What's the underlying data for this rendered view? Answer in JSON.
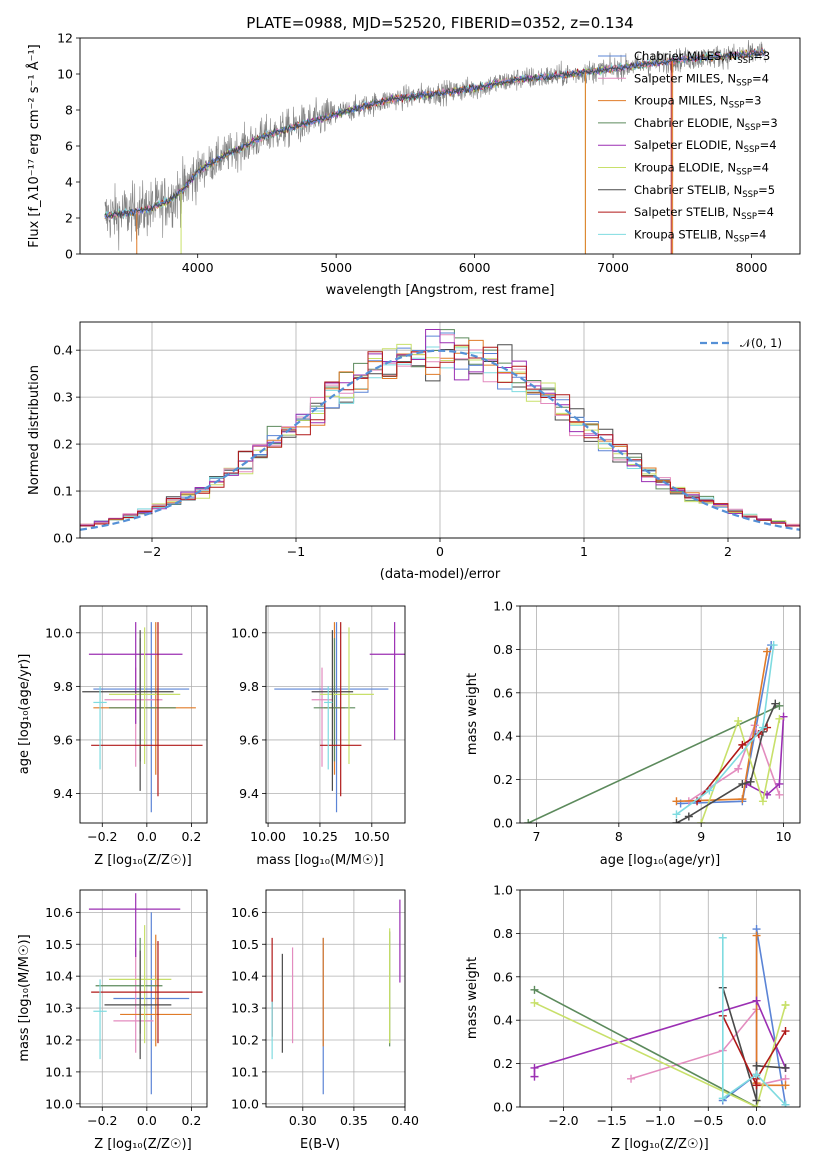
{
  "series_styles": [
    {
      "name": "Chabrier MILES",
      "color": "#5b84d6"
    },
    {
      "name": "Salpeter MILES",
      "color": "#e38cbf"
    },
    {
      "name": "Kroupa MILES",
      "color": "#e07b28"
    },
    {
      "name": "Chabrier ELODIE",
      "color": "#5c8a5c"
    },
    {
      "name": "Salpeter ELODIE",
      "color": "#9b2fb3"
    },
    {
      "name": "Kroupa ELODIE",
      "color": "#c8e06a"
    },
    {
      "name": "Chabrier STELIB",
      "color": "#4a4a4a"
    },
    {
      "name": "Salpeter STELIB",
      "color": "#b01818"
    },
    {
      "name": "Kroupa STELIB",
      "color": "#7fdbe0"
    }
  ],
  "chart_data": [
    {
      "id": "spectrum",
      "type": "line",
      "title": "PLATE=0988, MJD=52520, FIBERID=0352, z=0.134",
      "xlabel": "wavelength [Angstrom, rest frame]",
      "ylabel": "Flux [f_λ10⁻¹⁷ erg cm⁻² s⁻¹ Å⁻¹]",
      "xlim": [
        3150,
        8350
      ],
      "ylim": [
        0,
        12
      ],
      "xticks": [
        4000,
        5000,
        6000,
        7000,
        8000
      ],
      "yticks": [
        0,
        2,
        4,
        6,
        8,
        10,
        12
      ],
      "legend_position": "upper-right",
      "legend": [
        {
          "label": "Chabrier MILES, ",
          "n": "3"
        },
        {
          "label": "Salpeter MILES, ",
          "n": "4"
        },
        {
          "label": "Kroupa MILES, ",
          "n": "3"
        },
        {
          "label": "Chabrier ELODIE, ",
          "n": "3"
        },
        {
          "label": "Salpeter ELODIE, ",
          "n": "4"
        },
        {
          "label": "Kroupa ELODIE, ",
          "n": "4"
        },
        {
          "label": "Chabrier STELIB, ",
          "n": "5"
        },
        {
          "label": "Salpeter STELIB, ",
          "n": "4"
        },
        {
          "label": "Kroupa STELIB, ",
          "n": "4"
        }
      ],
      "nssp_symbol": "N",
      "nssp_sub": "SSP",
      "continuum": {
        "x": [
          3330,
          3500,
          3650,
          3800,
          3900,
          4000,
          4200,
          4500,
          4800,
          5100,
          5400,
          5700,
          6000,
          6300,
          6600,
          6900,
          7200,
          7500,
          7800,
          8100
        ],
        "y": [
          2.1,
          2.3,
          2.5,
          3.0,
          3.6,
          4.6,
          5.5,
          6.6,
          7.3,
          8.0,
          8.6,
          8.9,
          9.2,
          9.7,
          9.9,
          10.2,
          10.5,
          10.8,
          11.0,
          11.2
        ]
      },
      "spikes": [
        {
          "x": 6800,
          "y": 0,
          "color": "#c8e06a"
        },
        {
          "x": 6800,
          "y": 0,
          "color": "#e07b28"
        },
        {
          "x": 7420,
          "y": 0,
          "color": "#b01818"
        },
        {
          "x": 7430,
          "y": 0,
          "color": "#e07b28"
        },
        {
          "x": 3560,
          "y": 0,
          "color": "#e07b28"
        },
        {
          "x": 3880,
          "y": 0,
          "color": "#c8e06a"
        }
      ]
    },
    {
      "id": "residuals",
      "type": "histogram",
      "xlabel": "(data-model)/error",
      "ylabel": "Normed distribution",
      "xlim": [
        -2.5,
        2.5
      ],
      "ylim": [
        0,
        0.46
      ],
      "xticks": [
        -2,
        -1,
        0,
        1,
        2
      ],
      "yticks": [
        0.0,
        0.1,
        0.2,
        0.3,
        0.4
      ],
      "legend": "𝒩(0, 1)",
      "legend_color": "#5590d6",
      "bin_width": 0.1,
      "base_values": [
        0.03,
        0.04,
        0.04,
        0.045,
        0.05,
        0.05,
        0.06,
        0.075,
        0.09,
        0.1,
        0.11,
        0.12,
        0.14,
        0.15,
        0.17,
        0.18,
        0.21,
        0.24,
        0.27,
        0.28,
        0.29,
        0.3,
        0.31,
        0.32,
        0.34,
        0.35,
        0.37,
        0.38,
        0.39,
        0.4,
        0.4,
        0.4,
        0.4,
        0.39,
        0.38,
        0.37,
        0.36,
        0.35,
        0.34,
        0.32,
        0.31,
        0.29,
        0.28,
        0.26,
        0.24,
        0.22,
        0.21,
        0.19,
        0.17,
        0.15,
        0.14,
        0.12,
        0.11,
        0.09,
        0.08,
        0.07,
        0.06,
        0.05,
        0.045,
        0.04,
        0.035,
        0.03,
        0.03,
        0.028,
        0.025,
        0.025,
        0.022,
        0.02,
        0.02,
        0.018,
        0.017,
        0.016,
        0.015,
        0.014,
        0.013,
        0.012,
        0.011,
        0.01,
        0.009,
        0.008,
        0.007,
        0.006,
        0.005,
        0.004,
        0.003,
        0.002,
        0.001,
        0.001,
        0.0,
        0.0,
        0.0,
        0.0,
        0.0,
        0.0,
        0.0,
        0.0,
        0.0,
        0.0,
        0.0,
        0.0
      ]
    },
    {
      "id": "age-vs-Z",
      "type": "errorbar",
      "xlabel": "Z [log₁₀(Z/Z☉)]",
      "ylabel": "age  [log₁₀(age/yr)]",
      "xlim": [
        -0.3,
        0.27
      ],
      "ylim": [
        9.29,
        10.1
      ],
      "xticks": [
        -0.2,
        0.0,
        0.2
      ],
      "yticks": [
        9.4,
        9.6,
        9.8,
        10.0
      ],
      "points": [
        {
          "s": 0,
          "x": 0.02,
          "y": 9.79,
          "xerr": [
            0.26,
            0.17
          ],
          "yerr": [
            0.46,
            0.25
          ]
        },
        {
          "s": 1,
          "x": -0.05,
          "y": 9.75,
          "xerr": [
            0.14,
            0.12
          ],
          "yerr": [
            0.25,
            0.12
          ]
        },
        {
          "s": 2,
          "x": 0.04,
          "y": 9.72,
          "xerr": [
            0.28,
            0.18
          ],
          "yerr": [
            0.25,
            0.32
          ]
        },
        {
          "s": 3,
          "x": -0.03,
          "y": 9.72,
          "xerr": [
            0.14,
            0.16
          ],
          "yerr": [
            0.2,
            0.26
          ]
        },
        {
          "s": 4,
          "x": -0.05,
          "y": 9.92,
          "xerr": [
            0.21,
            0.21
          ],
          "yerr": [
            0.26,
            0.12
          ]
        },
        {
          "s": 5,
          "x": -0.01,
          "y": 9.77,
          "xerr": [
            0.16,
            0.16
          ],
          "yerr": [
            0.26,
            0.25
          ]
        },
        {
          "s": 6,
          "x": -0.03,
          "y": 9.78,
          "xerr": [
            0.26,
            0.15
          ],
          "yerr": [
            0.37,
            0.23
          ]
        },
        {
          "s": 7,
          "x": 0.05,
          "y": 9.58,
          "xerr": [
            0.3,
            0.2
          ],
          "yerr": [
            0.19,
            0.46
          ]
        },
        {
          "s": 8,
          "x": -0.21,
          "y": 9.74,
          "xerr": [
            0.03,
            0.03
          ],
          "yerr": [
            0.25,
            0.06
          ]
        }
      ]
    },
    {
      "id": "age-vs-mass",
      "type": "errorbar",
      "xlabel": "mass [log₁₀(M/M☉)]",
      "ylabel": "",
      "xlim": [
        9.99,
        10.66
      ],
      "ylim": [
        9.29,
        10.1
      ],
      "xticks": [
        10.0,
        10.25,
        10.5
      ],
      "yticks": [
        9.4,
        9.6,
        9.8,
        10.0
      ],
      "points": [
        {
          "s": 0,
          "x": 10.33,
          "y": 9.79,
          "xerr": [
            0.3,
            0.25
          ],
          "yerr": [
            0.46,
            0.25
          ]
        },
        {
          "s": 1,
          "x": 10.26,
          "y": 9.75,
          "xerr": [
            0.05,
            0.05
          ],
          "yerr": [
            0.25,
            0.12
          ]
        },
        {
          "s": 2,
          "x": 10.32,
          "y": 9.72,
          "xerr": [
            0.05,
            0.05
          ],
          "yerr": [
            0.25,
            0.32
          ]
        },
        {
          "s": 3,
          "x": 10.32,
          "y": 9.72,
          "xerr": [
            0.1,
            0.1
          ],
          "yerr": [
            0.2,
            0.26
          ]
        },
        {
          "s": 4,
          "x": 10.61,
          "y": 9.92,
          "xerr": [
            0.12,
            0.05
          ],
          "yerr": [
            0.32,
            0.12
          ]
        },
        {
          "s": 5,
          "x": 10.39,
          "y": 9.77,
          "xerr": [
            0.14,
            0.12
          ],
          "yerr": [
            0.26,
            0.25
          ]
        },
        {
          "s": 6,
          "x": 10.31,
          "y": 9.78,
          "xerr": [
            0.1,
            0.1
          ],
          "yerr": [
            0.37,
            0.23
          ]
        },
        {
          "s": 7,
          "x": 10.35,
          "y": 9.58,
          "xerr": [
            0.1,
            0.1
          ],
          "yerr": [
            0.19,
            0.46
          ]
        },
        {
          "s": 8,
          "x": 10.29,
          "y": 9.74,
          "xerr": [
            0.02,
            0.02
          ],
          "yerr": [
            0.25,
            0.06
          ]
        }
      ]
    },
    {
      "id": "massweight-vs-age",
      "type": "line",
      "xlabel": "age  [log₁₀(age/yr)]",
      "ylabel": "mass weight",
      "xlim": [
        6.8,
        10.2
      ],
      "ylim": [
        0,
        1.0
      ],
      "xticks": [
        7,
        8,
        9,
        10
      ],
      "yticks": [
        0.0,
        0.2,
        0.4,
        0.6,
        0.8,
        1.0
      ],
      "series": [
        {
          "s": 0,
          "x": [
            8.75,
            9.5,
            9.85
          ],
          "y": [
            0.09,
            0.1,
            0.82
          ]
        },
        {
          "s": 1,
          "x": [
            8.85,
            9.45,
            9.65,
            9.95
          ],
          "y": [
            0.1,
            0.25,
            0.45,
            0.13
          ]
        },
        {
          "s": 2,
          "x": [
            8.7,
            9.5,
            9.8
          ],
          "y": [
            0.1,
            0.11,
            0.79
          ]
        },
        {
          "s": 3,
          "x": [
            6.9,
            9.95
          ],
          "y": [
            0.0,
            0.54
          ]
        },
        {
          "s": 4,
          "x": [
            9.55,
            9.8,
            9.95,
            10.0
          ],
          "y": [
            0.18,
            0.13,
            0.18,
            0.49
          ]
        },
        {
          "s": 5,
          "x": [
            9.0,
            9.45,
            9.75,
            9.95
          ],
          "y": [
            0.0,
            0.47,
            0.1,
            0.48
          ]
        },
        {
          "s": 6,
          "x": [
            8.7,
            8.85,
            9.5,
            9.6,
            9.75,
            9.9
          ],
          "y": [
            0.0,
            0.03,
            0.18,
            0.19,
            0.42,
            0.55
          ]
        },
        {
          "s": 7,
          "x": [
            8.95,
            9.5,
            9.7,
            9.8
          ],
          "y": [
            0.1,
            0.36,
            0.41,
            0.44
          ]
        },
        {
          "s": 8,
          "x": [
            8.7,
            9.1,
            9.75,
            9.88
          ],
          "y": [
            0.04,
            0.15,
            0.44,
            0.82
          ]
        }
      ]
    },
    {
      "id": "mass-vs-Z",
      "type": "errorbar",
      "xlabel": "Z [log₁₀(Z/Z☉)]",
      "ylabel": "mass [log₁₀(M/M☉)]",
      "xlim": [
        -0.3,
        0.27
      ],
      "ylim": [
        9.99,
        10.67
      ],
      "xticks": [
        -0.2,
        0.0,
        0.2
      ],
      "yticks": [
        10.0,
        10.1,
        10.2,
        10.3,
        10.4,
        10.5,
        10.6
      ],
      "points": [
        {
          "s": 0,
          "x": 0.02,
          "y": 10.33,
          "xerr": [
            0.17,
            0.17
          ],
          "yerr": [
            0.3,
            0.27
          ]
        },
        {
          "s": 1,
          "x": -0.05,
          "y": 10.26,
          "xerr": [
            0.1,
            0.08
          ],
          "yerr": [
            0.1,
            0.23
          ]
        },
        {
          "s": 2,
          "x": 0.04,
          "y": 10.28,
          "xerr": [
            0.16,
            0.16
          ],
          "yerr": [
            0.1,
            0.25
          ]
        },
        {
          "s": 3,
          "x": -0.03,
          "y": 10.37,
          "xerr": [
            0.2,
            0.1
          ],
          "yerr": [
            0.15,
            0.15
          ]
        },
        {
          "s": 4,
          "x": -0.05,
          "y": 10.61,
          "xerr": [
            0.21,
            0.2
          ],
          "yerr": [
            0.15,
            0.05
          ]
        },
        {
          "s": 5,
          "x": -0.01,
          "y": 10.39,
          "xerr": [
            0.16,
            0.12
          ],
          "yerr": [
            0.2,
            0.17
          ]
        },
        {
          "s": 6,
          "x": -0.03,
          "y": 10.31,
          "xerr": [
            0.16,
            0.14
          ],
          "yerr": [
            0.17,
            0.17
          ]
        },
        {
          "s": 7,
          "x": 0.05,
          "y": 10.35,
          "xerr": [
            0.3,
            0.2
          ],
          "yerr": [
            0.16,
            0.16
          ]
        },
        {
          "s": 8,
          "x": -0.21,
          "y": 10.29,
          "xerr": [
            0.03,
            0.03
          ],
          "yerr": [
            0.15,
            0.1
          ]
        }
      ]
    },
    {
      "id": "mass-vs-EBV",
      "type": "errorbar",
      "xlabel": "E(B-V)",
      "ylabel": "",
      "xlim": [
        0.264,
        0.4
      ],
      "ylim": [
        9.99,
        10.67
      ],
      "xticks": [
        0.3,
        0.35,
        0.4
      ],
      "yticks": [
        10.0,
        10.1,
        10.2,
        10.3,
        10.4,
        10.5,
        10.6
      ],
      "points": [
        {
          "s": 0,
          "x": 0.32,
          "y": 10.33,
          "xerr": [
            0,
            0
          ],
          "yerr": [
            0.3,
            0.19
          ]
        },
        {
          "s": 1,
          "x": 0.29,
          "y": 10.28,
          "xerr": [
            0,
            0
          ],
          "yerr": [
            0.09,
            0.21
          ]
        },
        {
          "s": 2,
          "x": 0.32,
          "y": 10.28,
          "xerr": [
            0,
            0
          ],
          "yerr": [
            0.1,
            0.24
          ]
        },
        {
          "s": 3,
          "x": 0.385,
          "y": 10.37,
          "xerr": [
            0,
            0
          ],
          "yerr": [
            0.19,
            0.17
          ]
        },
        {
          "s": 4,
          "x": 0.395,
          "y": 10.48,
          "xerr": [
            0,
            0
          ],
          "yerr": [
            0.1,
            0.16
          ]
        },
        {
          "s": 5,
          "x": 0.385,
          "y": 10.36,
          "xerr": [
            0,
            0
          ],
          "yerr": [
            0.17,
            0.19
          ]
        },
        {
          "s": 6,
          "x": 0.28,
          "y": 10.32,
          "xerr": [
            0,
            0
          ],
          "yerr": [
            0.16,
            0.15
          ]
        },
        {
          "s": 7,
          "x": 0.27,
          "y": 10.35,
          "xerr": [
            0,
            0
          ],
          "yerr": [
            0.14,
            0.17
          ]
        },
        {
          "s": 8,
          "x": 0.27,
          "y": 10.22,
          "xerr": [
            0,
            0
          ],
          "yerr": [
            0.08,
            0.1
          ]
        }
      ]
    },
    {
      "id": "massweight-vs-Z",
      "type": "line",
      "xlabel": "Z [log₁₀(Z/Z☉)]",
      "ylabel": "mass weight",
      "xlim": [
        -2.45,
        0.45
      ],
      "ylim": [
        0,
        1.0
      ],
      "xticks": [
        -2.0,
        -1.5,
        -1.0,
        -0.5,
        0.0
      ],
      "yticks": [
        0.0,
        0.2,
        0.4,
        0.6,
        0.8,
        1.0
      ],
      "series": [
        {
          "s": 0,
          "x": [
            -0.35,
            0.0,
            0.0,
            0.3
          ],
          "y": [
            0.03,
            0.15,
            0.82,
            0.01
          ]
        },
        {
          "s": 1,
          "x": [
            -1.3,
            -0.35,
            0.0,
            0.0,
            0.3
          ],
          "y": [
            0.13,
            0.26,
            0.45,
            0.1,
            0.13
          ]
        },
        {
          "s": 2,
          "x": [
            0.0,
            0.0,
            0.0,
            0.3
          ],
          "y": [
            0.79,
            0.11,
            0.1,
            0.1
          ]
        },
        {
          "s": 3,
          "x": [
            -2.3,
            0.0
          ],
          "y": [
            0.54,
            0.0
          ]
        },
        {
          "s": 4,
          "x": [
            -2.3,
            -2.3,
            0.0,
            0.3,
            0.3
          ],
          "y": [
            0.14,
            0.18,
            0.49,
            0.18,
            0.18
          ]
        },
        {
          "s": 5,
          "x": [
            -2.3,
            0.0,
            0.3,
            0.3
          ],
          "y": [
            0.48,
            0.0,
            0.47,
            0.47
          ]
        },
        {
          "s": 6,
          "x": [
            -0.35,
            0.0,
            0.0,
            0.3
          ],
          "y": [
            0.55,
            0.03,
            0.19,
            0.18
          ]
        },
        {
          "s": 7,
          "x": [
            -0.35,
            0.0,
            0.0,
            0.3
          ],
          "y": [
            0.42,
            0.1,
            0.13,
            0.35
          ]
        },
        {
          "s": 8,
          "x": [
            -0.35,
            -0.35,
            0.0,
            0.3
          ],
          "y": [
            0.78,
            0.04,
            0.15,
            0.01
          ]
        }
      ]
    }
  ]
}
